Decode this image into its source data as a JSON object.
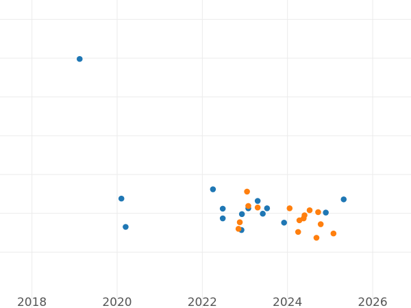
{
  "chart_data": {
    "type": "scatter",
    "title": "",
    "xlabel": "",
    "ylabel": "",
    "xlim": [
      2017.25,
      2026.9
    ],
    "ylim": [
      0,
      7.5
    ],
    "grid": true,
    "legend": "none",
    "x_ticks": [
      2018,
      2020,
      2022,
      2024,
      2026
    ],
    "x_tick_labels": [
      "2018",
      "2020",
      "2022",
      "2024",
      "2026"
    ],
    "y_ticks": [
      1,
      2,
      3,
      4,
      5,
      6,
      7
    ],
    "y_tick_labels": [
      "",
      "",
      "",
      "",
      "",
      "",
      ""
    ],
    "series": [
      {
        "color": "#1f77b4",
        "points": [
          {
            "x": 2019.12,
            "y": 5.98
          },
          {
            "x": 2020.1,
            "y": 2.38
          },
          {
            "x": 2020.2,
            "y": 1.65
          },
          {
            "x": 2022.25,
            "y": 2.62
          },
          {
            "x": 2022.48,
            "y": 2.12
          },
          {
            "x": 2022.48,
            "y": 1.87
          },
          {
            "x": 2022.92,
            "y": 1.57
          },
          {
            "x": 2022.93,
            "y": 1.98
          },
          {
            "x": 2023.08,
            "y": 2.13
          },
          {
            "x": 2023.3,
            "y": 2.32
          },
          {
            "x": 2023.42,
            "y": 1.99
          },
          {
            "x": 2023.52,
            "y": 2.13
          },
          {
            "x": 2023.92,
            "y": 1.76
          },
          {
            "x": 2024.9,
            "y": 2.02
          },
          {
            "x": 2025.32,
            "y": 2.36
          }
        ]
      },
      {
        "color": "#ff7f0e",
        "points": [
          {
            "x": 2022.85,
            "y": 1.6
          },
          {
            "x": 2022.88,
            "y": 1.77
          },
          {
            "x": 2023.05,
            "y": 2.56
          },
          {
            "x": 2023.08,
            "y": 2.19
          },
          {
            "x": 2023.3,
            "y": 2.15
          },
          {
            "x": 2024.05,
            "y": 2.13
          },
          {
            "x": 2024.25,
            "y": 1.52
          },
          {
            "x": 2024.28,
            "y": 1.82
          },
          {
            "x": 2024.38,
            "y": 1.87
          },
          {
            "x": 2024.4,
            "y": 1.95
          },
          {
            "x": 2024.52,
            "y": 2.08
          },
          {
            "x": 2024.68,
            "y": 1.37
          },
          {
            "x": 2024.72,
            "y": 2.03
          },
          {
            "x": 2024.78,
            "y": 1.72
          },
          {
            "x": 2025.08,
            "y": 1.48
          }
        ]
      }
    ]
  }
}
